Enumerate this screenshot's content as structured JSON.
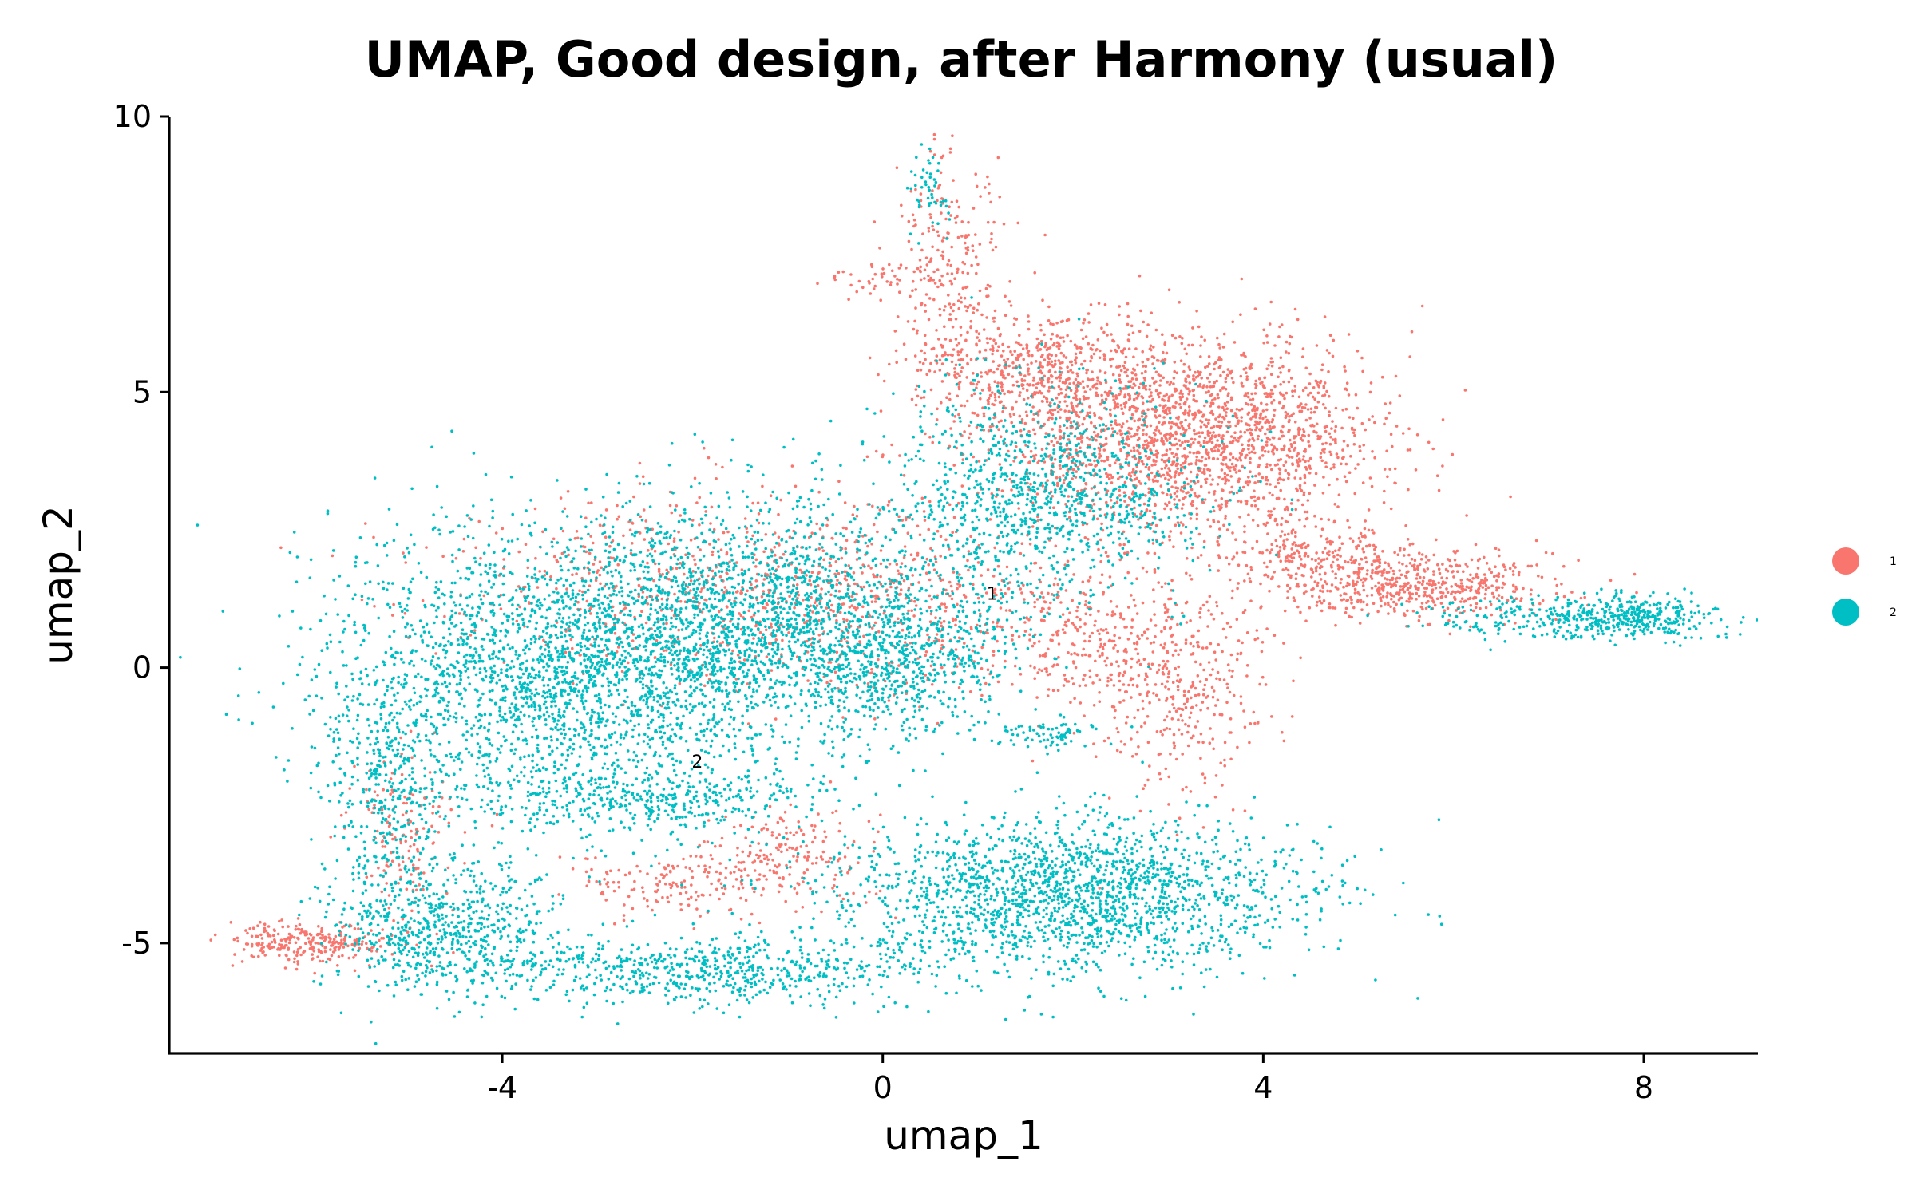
{
  "chart_data": {
    "type": "scatter",
    "title": "UMAP, Good design, after Harmony (usual)",
    "xlabel": "umap_1",
    "ylabel": "umap_2",
    "xlim": [
      -7.5,
      9.2
    ],
    "ylim": [
      -7,
      10
    ],
    "xticks": [
      -4,
      0,
      4,
      8
    ],
    "xtick_labels": [
      "-4",
      "0",
      "4",
      "8"
    ],
    "yticks": [
      -5,
      0,
      5,
      10
    ],
    "ytick_labels": [
      "-5",
      "0",
      "5",
      "10"
    ],
    "grid": false,
    "legend_position": "right",
    "series": [
      {
        "name": "1",
        "color": "#F8766D",
        "regions": [
          {
            "cx": 3.2,
            "cy": 4.2,
            "sx": 1.0,
            "sy": 0.9,
            "w": 5000
          },
          {
            "cx": 1.5,
            "cy": 5.4,
            "sx": 0.6,
            "sy": 0.5,
            "w": 1200
          },
          {
            "cx": 0.7,
            "cy": 7.6,
            "sx": 0.25,
            "sy": 0.9,
            "w": 500
          },
          {
            "cx": 0.0,
            "cy": 7.1,
            "sx": 0.3,
            "sy": 0.2,
            "w": 120
          },
          {
            "cx": 5.6,
            "cy": 1.5,
            "sx": 0.7,
            "sy": 0.3,
            "w": 1300
          },
          {
            "cx": 4.6,
            "cy": 2.0,
            "sx": 0.5,
            "sy": 0.3,
            "w": 500
          },
          {
            "cx": 3.1,
            "cy": -0.2,
            "sx": 0.5,
            "sy": 1.0,
            "w": 900
          },
          {
            "cx": 2.0,
            "cy": 0.6,
            "sx": 0.6,
            "sy": 0.7,
            "w": 700
          },
          {
            "cx": -2.0,
            "cy": -3.9,
            "sx": 0.6,
            "sy": 0.3,
            "w": 450
          },
          {
            "cx": -0.9,
            "cy": -3.3,
            "sx": 0.4,
            "sy": 0.4,
            "w": 350
          },
          {
            "cx": -6.0,
            "cy": -5.0,
            "sx": 0.45,
            "sy": 0.2,
            "w": 650
          },
          {
            "cx": -5.0,
            "cy": -3.0,
            "sx": 0.3,
            "sy": 0.9,
            "w": 350
          },
          {
            "cx": -2.0,
            "cy": 1.5,
            "sx": 1.3,
            "sy": 0.9,
            "w": 1500
          },
          {
            "cx": 0.0,
            "cy": 1.3,
            "sx": 0.8,
            "sy": 0.9,
            "w": 800
          }
        ]
      },
      {
        "name": "2",
        "color": "#00BFC4",
        "regions": [
          {
            "cx": -3.2,
            "cy": 0.0,
            "sx": 1.3,
            "sy": 1.3,
            "w": 6500
          },
          {
            "cx": -1.2,
            "cy": 1.0,
            "sx": 1.0,
            "sy": 1.0,
            "w": 3000
          },
          {
            "cx": 0.2,
            "cy": 0.2,
            "sx": 0.6,
            "sy": 0.7,
            "w": 1500
          },
          {
            "cx": 1.7,
            "cy": 3.2,
            "sx": 0.8,
            "sy": 1.0,
            "w": 2500
          },
          {
            "cx": 2.0,
            "cy": -4.1,
            "sx": 1.2,
            "sy": 0.7,
            "w": 4500
          },
          {
            "cx": -1.8,
            "cy": -5.5,
            "sx": 1.3,
            "sy": 0.3,
            "w": 1600
          },
          {
            "cx": -4.6,
            "cy": -4.7,
            "sx": 0.6,
            "sy": 0.6,
            "w": 1600
          },
          {
            "cx": -5.2,
            "cy": -2.0,
            "sx": 0.35,
            "sy": 1.2,
            "w": 900
          },
          {
            "cx": 7.8,
            "cy": 0.9,
            "sx": 0.5,
            "sy": 0.2,
            "w": 1000
          },
          {
            "cx": 6.6,
            "cy": 0.9,
            "sx": 0.5,
            "sy": 0.2,
            "w": 250
          },
          {
            "cx": 1.8,
            "cy": -1.2,
            "sx": 0.3,
            "sy": 0.15,
            "w": 180
          },
          {
            "cx": 0.5,
            "cy": 8.6,
            "sx": 0.1,
            "sy": 0.35,
            "w": 120
          },
          {
            "cx": -2.5,
            "cy": -2.4,
            "sx": 0.9,
            "sy": 0.3,
            "w": 900
          }
        ]
      }
    ],
    "cluster_labels": [
      {
        "text": "1",
        "x": 1.15,
        "y": 1.35
      },
      {
        "text": "2",
        "x": -1.95,
        "y": -1.7
      }
    ],
    "legend": [
      {
        "label": "1",
        "color": "#F8766D"
      },
      {
        "label": "2",
        "color": "#00BFC4"
      }
    ]
  }
}
